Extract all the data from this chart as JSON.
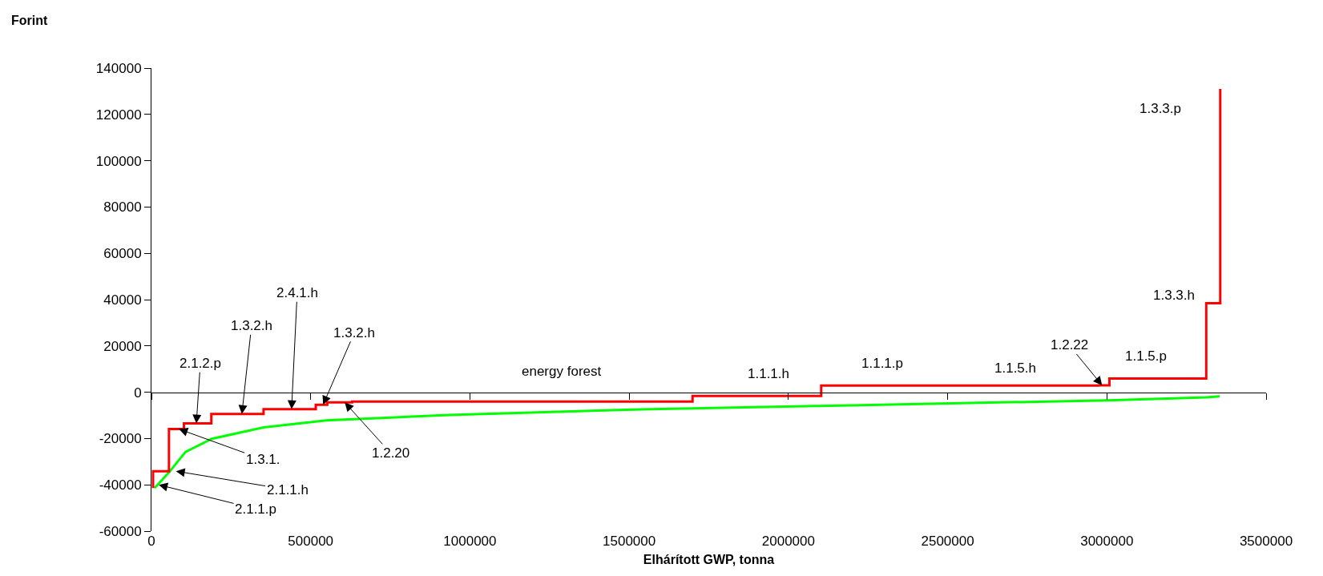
{
  "chart_data": {
    "type": "line",
    "xlabel": "Elhárított GWP, tonna",
    "ylabel": "Forint",
    "xlim": [
      0,
      3500000
    ],
    "xticks": [
      0,
      500000,
      1000000,
      1500000,
      2000000,
      2500000,
      3000000,
      3500000
    ],
    "ylim": [
      -60000,
      140000
    ],
    "yticks": [
      -60000,
      -40000,
      -20000,
      0,
      20000,
      40000,
      60000,
      80000,
      100000,
      120000,
      140000
    ],
    "marker": "none",
    "line_style": "solid",
    "series": [
      {
        "type": "step",
        "color": "#ff0000",
        "x": [
          5000,
          5000,
          55000,
          102000,
          188000,
          352000,
          516000,
          552000,
          630000,
          1699000,
          2103000,
          2974000,
          3008000,
          3312000,
          3356000
        ],
        "values": [
          -41400,
          -34100,
          -15900,
          -13500,
          -9400,
          -7300,
          -5400,
          -4400,
          -4000,
          -1600,
          2900,
          3000,
          5900,
          38400,
          131000
        ]
      },
      {
        "color": "#00ff00",
        "x": [
          9800,
          54700,
          106800,
          189700,
          352000,
          549000,
          934000,
          1539000,
          2103000,
          3004000,
          3312000,
          3354000
        ],
        "values": [
          -41400,
          -34700,
          -25800,
          -20100,
          -15200,
          -12200,
          -9800,
          -7400,
          -5900,
          -3500,
          -2200,
          -1800
        ]
      }
    ],
    "annotations": [
      {
        "text": "2.1.2.p",
        "x": 141000,
        "y": -13500
      },
      {
        "text": "1.3.2.h",
        "x": 284000,
        "y": -9400
      },
      {
        "text": "2.4.1.h",
        "x": 440000,
        "y": -7300
      },
      {
        "text": "1.3.2.h",
        "x": 539000,
        "y": -5400
      },
      {
        "text": "1.3.1.",
        "x": 86000,
        "y": -15900
      },
      {
        "text": "2.1.1.h",
        "x": 77000,
        "y": -34100
      },
      {
        "text": "2.1.1.p",
        "x": 23000,
        "y": -40000
      },
      {
        "text": "1.2.20",
        "x": 607000,
        "y": -4400
      },
      {
        "text": "1.2.22",
        "x": 2985000,
        "y": 3000
      },
      {
        "text": "energy forest",
        "x": 1287000,
        "y": -4000
      },
      {
        "text": "1.1.1.h",
        "x": 1937000,
        "y": -1600
      },
      {
        "text": "1.1.1.p",
        "x": 2295000,
        "y": 2900
      },
      {
        "text": "1.1.5.h",
        "x": 2712000,
        "y": 2900
      },
      {
        "text": "1.1.5.p",
        "x": 3192000,
        "y": 5900
      },
      {
        "text": "1.3.3.h",
        "x": 3312000,
        "y": 38400
      },
      {
        "text": "1.3.3.p",
        "x": 3356000,
        "y": 122400
      }
    ]
  }
}
